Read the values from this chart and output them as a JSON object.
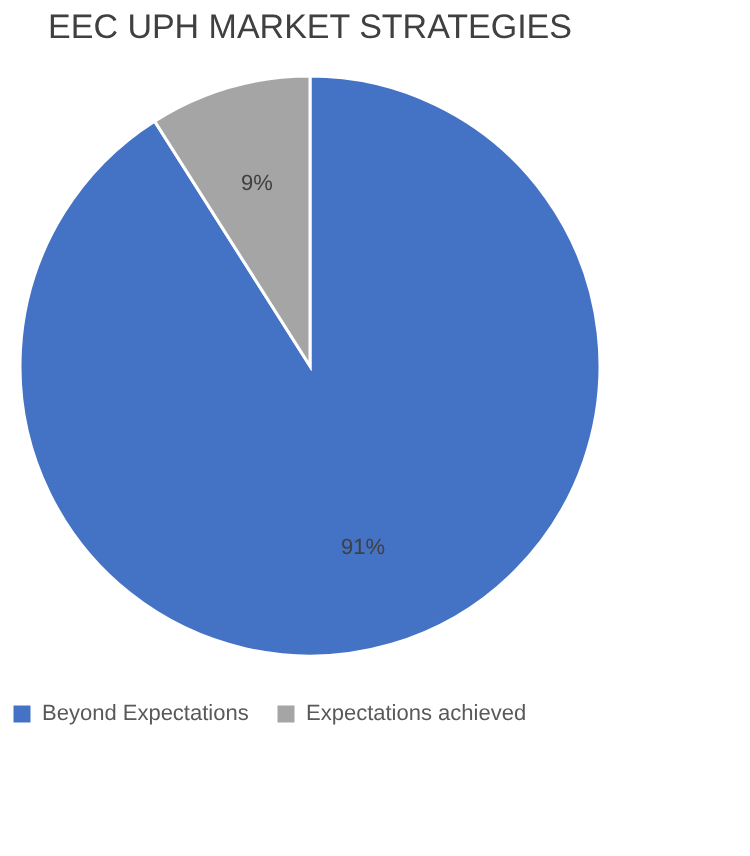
{
  "chart_data": {
    "type": "pie",
    "title": "EEC UPH MARKET STRATEGIES",
    "categories": [
      "Beyond Expectations",
      "Expectations achieved"
    ],
    "values": [
      91,
      9
    ],
    "colors": [
      "#4472c4",
      "#a5a5a5"
    ],
    "value_labels": [
      "91%",
      "9%"
    ],
    "legend": "bottom"
  }
}
